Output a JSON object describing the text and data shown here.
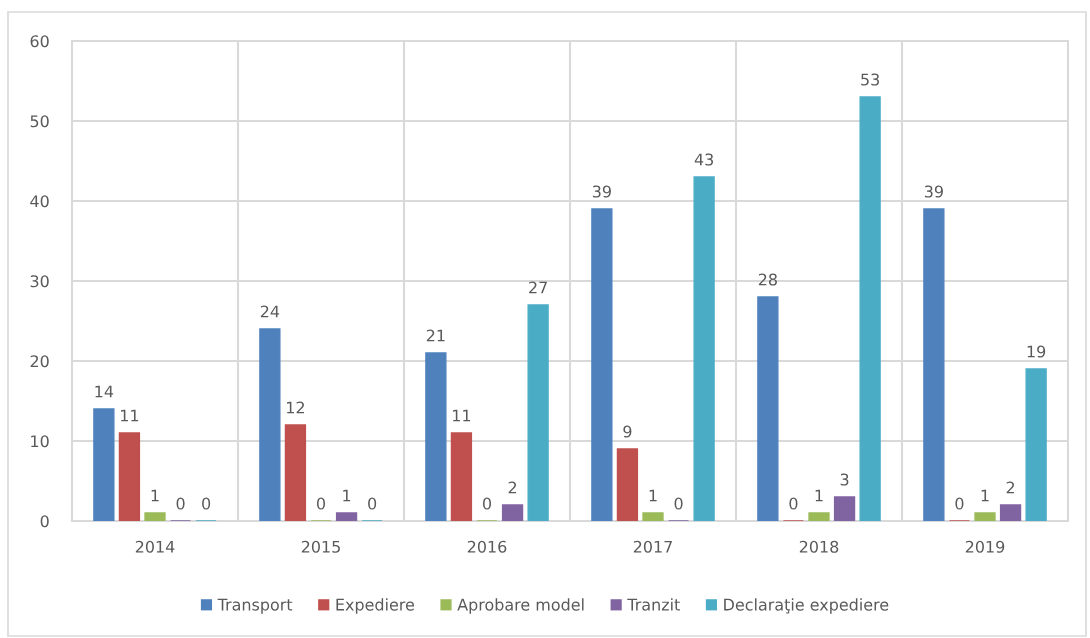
{
  "chart_data": {
    "type": "bar",
    "categories": [
      "2014",
      "2015",
      "2016",
      "2017",
      "2018",
      "2019"
    ],
    "series": [
      {
        "name": "Transport",
        "color": "#4f81bd",
        "values": [
          14,
          24,
          21,
          39,
          28,
          39
        ]
      },
      {
        "name": "Expediere",
        "color": "#c0504d",
        "values": [
          11,
          12,
          11,
          9,
          0,
          0
        ]
      },
      {
        "name": "Aprobare model",
        "color": "#9bbb59",
        "values": [
          1,
          0,
          0,
          1,
          1,
          1
        ]
      },
      {
        "name": "Tranzit",
        "color": "#8064a2",
        "values": [
          0,
          1,
          2,
          0,
          3,
          2
        ]
      },
      {
        "name": "Declaraţie expediere",
        "color": "#4bacc6",
        "values": [
          0,
          0,
          27,
          43,
          53,
          19
        ]
      }
    ],
    "ylim": [
      0,
      60
    ],
    "yticks": [
      0,
      10,
      20,
      30,
      40,
      50,
      60
    ],
    "grid": true,
    "legend": "bottom",
    "data_labels": true
  }
}
